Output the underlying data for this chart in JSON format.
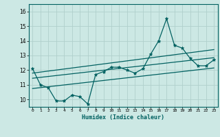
{
  "title": "",
  "xlabel": "Humidex (Indice chaleur)",
  "ylabel": "",
  "background_color": "#cce8e4",
  "grid_color": "#b0d0cc",
  "line_color": "#006060",
  "xlim": [
    -0.5,
    23.5
  ],
  "ylim": [
    9.5,
    16.5
  ],
  "yticks": [
    10,
    11,
    12,
    13,
    14,
    15,
    16
  ],
  "xticks": [
    0,
    1,
    2,
    3,
    4,
    5,
    6,
    7,
    8,
    9,
    10,
    11,
    12,
    13,
    14,
    15,
    16,
    17,
    18,
    19,
    20,
    21,
    22,
    23
  ],
  "data_x": [
    0,
    1,
    2,
    3,
    4,
    5,
    6,
    7,
    8,
    9,
    10,
    11,
    12,
    13,
    14,
    15,
    16,
    17,
    18,
    19,
    20,
    21,
    22,
    23
  ],
  "data_y": [
    12.1,
    11.0,
    10.8,
    9.9,
    9.9,
    10.3,
    10.2,
    9.7,
    11.7,
    11.9,
    12.2,
    12.2,
    12.0,
    11.8,
    12.1,
    13.1,
    14.0,
    15.5,
    13.7,
    13.5,
    12.8,
    12.3,
    12.3,
    12.7
  ],
  "trend1_x": [
    0,
    23
  ],
  "trend1_y": [
    10.75,
    12.15
  ],
  "trend2_x": [
    0,
    23
  ],
  "trend2_y": [
    11.45,
    12.85
  ],
  "trend3_x": [
    0,
    23
  ],
  "trend3_y": [
    11.8,
    13.4
  ]
}
